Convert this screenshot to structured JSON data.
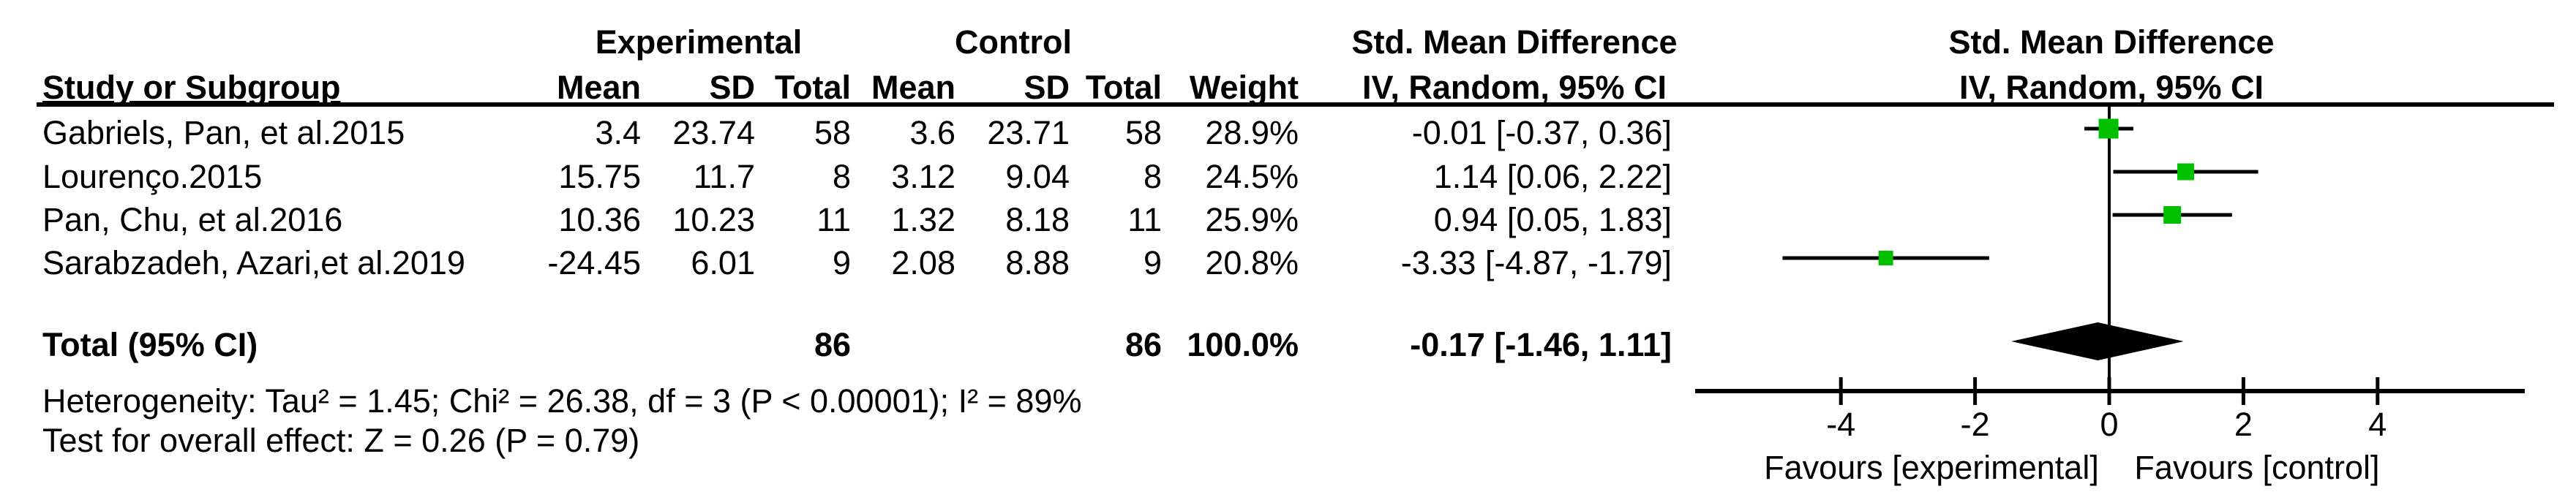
{
  "table": {
    "group_headers": {
      "experimental": "Experimental",
      "control": "Control",
      "smd_table": "Std. Mean Difference",
      "smd_plot": "Std. Mean Difference"
    },
    "col_headers": {
      "study": "Study or Subgroup",
      "mean1": "Mean",
      "sd1": "SD",
      "total1": "Total",
      "mean2": "Mean",
      "sd2": "SD",
      "total2": "Total",
      "weight": "Weight",
      "ci": "IV, Random, 95% CI",
      "ci_plot": "IV, Random, 95% CI"
    },
    "rows": [
      {
        "study": "Gabriels, Pan, et al.2015",
        "mean1": "3.4",
        "sd1": "23.74",
        "total1": "58",
        "mean2": "3.6",
        "sd2": "23.71",
        "total2": "58",
        "weight": "28.9%",
        "ci": "-0.01 [-0.37, 0.36]"
      },
      {
        "study": "Lourenço.2015",
        "mean1": "15.75",
        "sd1": "11.7",
        "total1": "8",
        "mean2": "3.12",
        "sd2": "9.04",
        "total2": "8",
        "weight": "24.5%",
        "ci": "1.14 [0.06, 2.22]"
      },
      {
        "study": "Pan, Chu, et al.2016",
        "mean1": "10.36",
        "sd1": "10.23",
        "total1": "11",
        "mean2": "1.32",
        "sd2": "8.18",
        "total2": "11",
        "weight": "25.9%",
        "ci": "0.94 [0.05, 1.83]"
      },
      {
        "study": "Sarabzadeh, Azari,et al.2019",
        "mean1": "-24.45",
        "sd1": "6.01",
        "total1": "9",
        "mean2": "2.08",
        "sd2": "8.88",
        "total2": "9",
        "weight": "20.8%",
        "ci": "-3.33 [-4.87, -1.79]"
      }
    ],
    "total": {
      "label": "Total (95% CI)",
      "total1": "86",
      "total2": "86",
      "weight": "100.0%",
      "ci": "-0.17 [-1.46, 1.11]"
    },
    "heterogeneity": "Heterogeneity: Tau² = 1.45; Chi² = 26.38, df = 3 (P < 0.00001); I² = 89%",
    "overall_effect": "Test for overall effect: Z = 0.26 (P = 0.79)"
  },
  "chart_data": {
    "type": "forest",
    "title": "Std. Mean Difference",
    "subtitle": "IV, Random, 95% CI",
    "effect_measure": "Std. Mean Difference, IV, Random, 95% CI",
    "studies": [
      {
        "name": "Gabriels, Pan, et al.2015",
        "est": -0.01,
        "lo": -0.37,
        "hi": 0.36,
        "weight_pct": 28.9
      },
      {
        "name": "Lourenço.2015",
        "est": 1.14,
        "lo": 0.06,
        "hi": 2.22,
        "weight_pct": 24.5
      },
      {
        "name": "Pan, Chu, et al.2016",
        "est": 0.94,
        "lo": 0.05,
        "hi": 1.83,
        "weight_pct": 25.9
      },
      {
        "name": "Sarabzadeh, Azari,et al.2019",
        "est": -3.33,
        "lo": -4.87,
        "hi": -1.79,
        "weight_pct": 20.8
      }
    ],
    "pooled": {
      "label": "Total (95% CI)",
      "est": -0.17,
      "lo": -1.46,
      "hi": 1.11,
      "weight_pct": 100.0
    },
    "axis": {
      "ticks": [
        -4,
        -2,
        0,
        2,
        4
      ],
      "xlim": [
        -6.17,
        6.19
      ],
      "zero_line": true
    },
    "footer_left": "Favours [experimental]",
    "footer_right": "Favours [control]",
    "marker_color": "#00c000",
    "line_color": "#000000",
    "diamond_color": "#000000"
  }
}
